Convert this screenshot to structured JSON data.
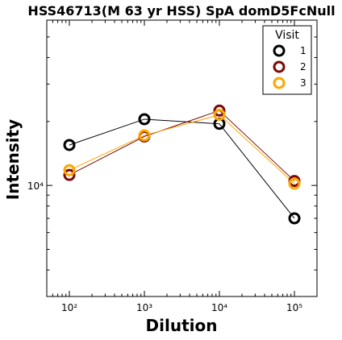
{
  "chart_data": {
    "type": "line",
    "title": "HSS46713(M 63 yr HSS) SpA domD5FcNull",
    "xlabel": "Dilution",
    "ylabel": "Intensity",
    "x_scale": "log",
    "y_scale": "log",
    "x": [
      100,
      1000,
      10000,
      100000
    ],
    "x_tick_labels": [
      "10²",
      "10³",
      "10⁴",
      "10⁵"
    ],
    "y_tick_labels": [
      "10⁴"
    ],
    "xlim": [
      50,
      200000
    ],
    "ylim": [
      3000,
      60000
    ],
    "grid": false,
    "legend": {
      "title": "Visit",
      "placement": "top-right"
    },
    "series": [
      {
        "name": "1",
        "color": "#000000",
        "values": [
          15500,
          20500,
          19500,
          7000
        ]
      },
      {
        "name": "2",
        "color": "#7b0b0b",
        "values": [
          11200,
          17000,
          22500,
          10500
        ]
      },
      {
        "name": "3",
        "color": "#ffa500",
        "values": [
          11800,
          17200,
          21500,
          10200
        ]
      }
    ]
  }
}
